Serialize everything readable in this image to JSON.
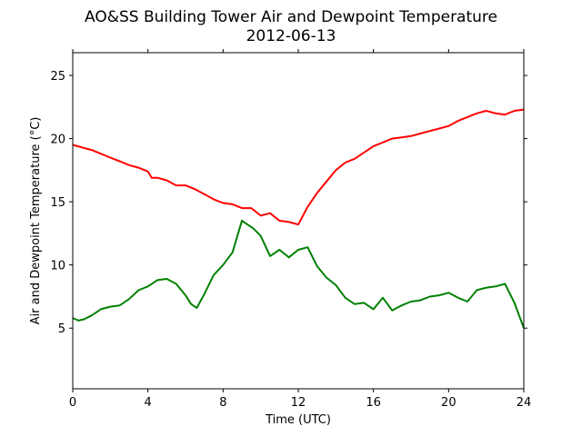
{
  "chart_data": {
    "type": "line",
    "title": "AO&SS Building Tower Air and Dewpoint Temperature",
    "subtitle": "2012-06-13",
    "xlabel": "Time (UTC)",
    "ylabel": "Air and Dewpoint Temperature (°C)",
    "xlim": [
      0,
      24
    ],
    "ylim": [
      0.2,
      26.8
    ],
    "xticks": [
      0,
      4,
      8,
      12,
      16,
      20,
      24
    ],
    "xtick_labels": [
      "0",
      "4",
      "8",
      "12",
      "16",
      "20",
      "24"
    ],
    "yticks": [
      5,
      10,
      15,
      20,
      25
    ],
    "ytick_labels": [
      "5",
      "10",
      "15",
      "20",
      "25"
    ],
    "grid": false,
    "series": [
      {
        "color": "#ff0000",
        "x": [
          0,
          0.5,
          1,
          1.5,
          2,
          2.5,
          3,
          3.5,
          4,
          4.2,
          4.5,
          5,
          5.5,
          6,
          6.5,
          7,
          7.5,
          8,
          8.5,
          9,
          9.2,
          9.5,
          10,
          10.5,
          11,
          11.5,
          12,
          12.5,
          13,
          13.5,
          14,
          14.5,
          15,
          15.5,
          16,
          16.5,
          17,
          17.5,
          18,
          18.5,
          19,
          19.5,
          20,
          20.5,
          21,
          21.5,
          22,
          22.5,
          23,
          23.5,
          24
        ],
        "values": [
          19.5,
          19.3,
          19.1,
          18.8,
          18.5,
          18.2,
          17.9,
          17.7,
          17.4,
          16.9,
          16.9,
          16.7,
          16.3,
          16.3,
          16.0,
          15.6,
          15.2,
          14.9,
          14.8,
          14.5,
          14.5,
          14.5,
          13.9,
          14.1,
          13.5,
          13.4,
          13.2,
          14.6,
          15.7,
          16.6,
          17.5,
          18.1,
          18.4,
          18.9,
          19.4,
          19.7,
          20.0,
          20.1,
          20.2,
          20.4,
          20.6,
          20.8,
          21.0,
          21.4,
          21.7,
          22.0,
          22.2,
          22.0,
          21.9,
          22.2,
          22.3
        ]
      },
      {
        "color": "#008000",
        "x": [
          0,
          0.3,
          0.6,
          1,
          1.5,
          2,
          2.5,
          3,
          3.5,
          4,
          4.5,
          5,
          5.5,
          6,
          6.3,
          6.6,
          7,
          7.5,
          8,
          8.5,
          9,
          9.3,
          9.6,
          10,
          10.5,
          11,
          11.5,
          12,
          12.5,
          13,
          13.5,
          14,
          14.5,
          15,
          15.5,
          16,
          16.5,
          17,
          17.5,
          18,
          18.5,
          19,
          19.5,
          20,
          20.5,
          21,
          21.5,
          22,
          22.5,
          23,
          23.5,
          24
        ],
        "values": [
          5.8,
          5.6,
          5.7,
          6.0,
          6.5,
          6.7,
          6.8,
          7.3,
          8.0,
          8.3,
          8.8,
          8.9,
          8.5,
          7.6,
          6.9,
          6.6,
          7.7,
          9.2,
          10.0,
          11.0,
          13.5,
          13.2,
          12.9,
          12.3,
          10.7,
          11.2,
          10.6,
          11.2,
          11.4,
          9.9,
          9.0,
          8.4,
          7.4,
          6.9,
          7.0,
          6.5,
          7.4,
          6.4,
          6.8,
          7.1,
          7.2,
          7.5,
          7.6,
          7.8,
          7.4,
          7.1,
          8.0,
          8.2,
          8.3,
          8.5,
          7.0,
          5.0
        ]
      }
    ]
  }
}
